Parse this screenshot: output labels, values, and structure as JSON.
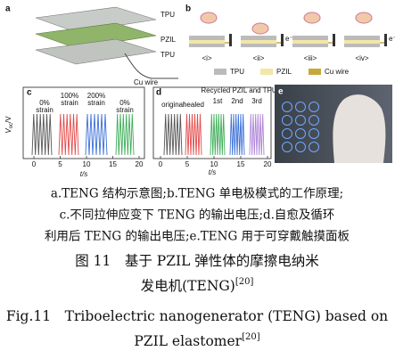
{
  "panel_a": {
    "label": "a",
    "layers": [
      "TPU",
      "PZIL",
      "TPU"
    ],
    "wire": "Cu wire"
  },
  "panel_b": {
    "label": "b",
    "steps": [
      "<i>",
      "<ii>",
      "<iii>",
      "<iv>"
    ],
    "electron": "e⁻",
    "legend": [
      "TPU",
      "PZIL",
      "Cu wire"
    ]
  },
  "panel_c": {
    "label": "c",
    "y_label": "V",
    "y_label_sub": "oc",
    "y_label_unit": "/V",
    "x_label": "t/s",
    "xticks": [
      0,
      5,
      10,
      15,
      20
    ],
    "annotations": [
      "0%",
      "strain",
      "100%",
      "strain",
      "200%",
      "strain",
      "0%",
      "strain"
    ]
  },
  "panel_d": {
    "label": "d",
    "x_label": "t/s",
    "xticks": [
      0,
      5,
      10,
      15,
      20
    ],
    "annotations": [
      "original",
      "healed",
      "Recycled PZIL and TPU",
      "1st",
      "2nd",
      "3rd"
    ]
  },
  "panel_e": {
    "label": "e"
  },
  "caption": {
    "lines": [
      "a.TENG 结构示意图;b.TENG 单电极模式的工作原理;",
      "c.不同拉伸应变下 TENG 的输出电压;d.自愈及循环",
      "利用后 TENG 的输出电压;e.TENG 用于可穿戴触摸面板"
    ],
    "title_cn": [
      "图 11　基于 PZIL 弹性体的摩擦电纳米",
      "发电机(TENG)"
    ],
    "ref_cn": "[20]",
    "title_en": [
      "Fig.11　Triboelectric nanogenerator (TENG) based on",
      "PZIL elastomer"
    ],
    "ref_en": "[20]"
  }
}
